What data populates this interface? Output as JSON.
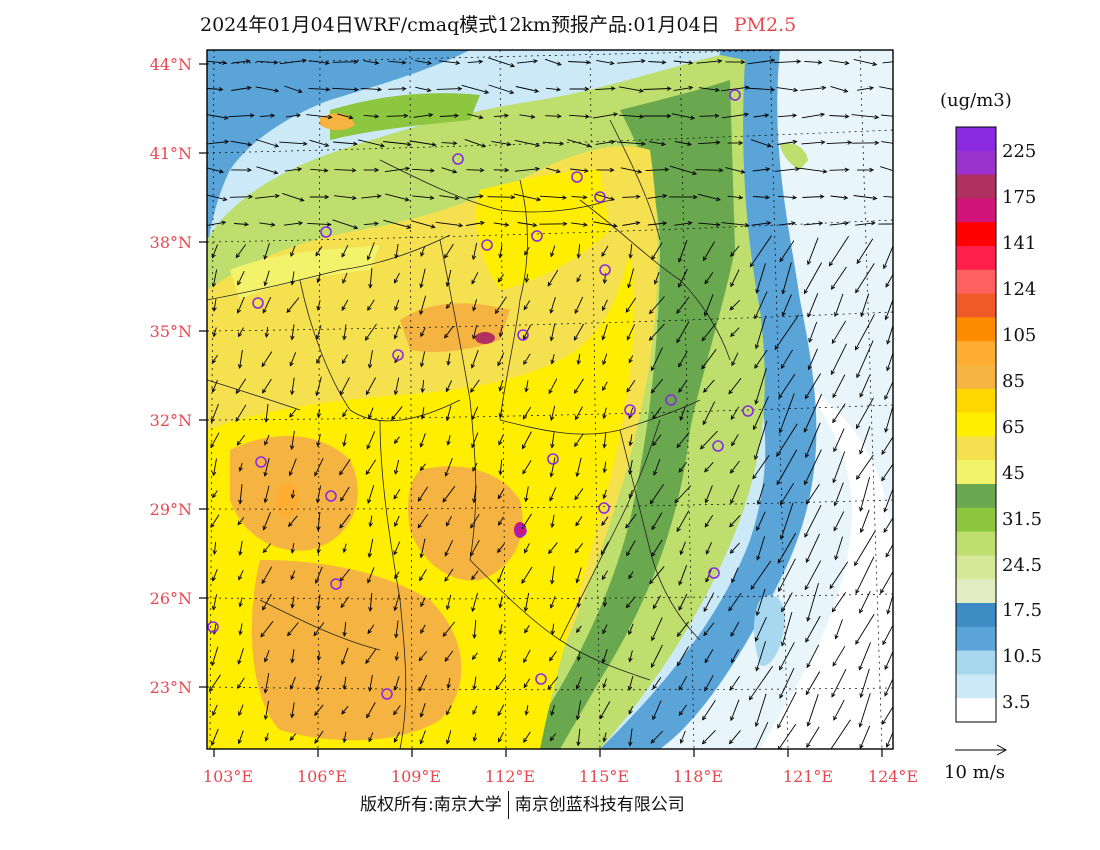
{
  "title": {
    "main": "2024年01月04日WRF/cmaq模式12km预报产品:01月04日",
    "pollutant": "PM2.5"
  },
  "axes": {
    "lat_labels": [
      "44°N",
      "41°N",
      "38°N",
      "35°N",
      "32°N",
      "29°N",
      "26°N",
      "23°N"
    ],
    "lon_labels": [
      "103°E",
      "106°E",
      "109°E",
      "112°E",
      "115°E",
      "118°E",
      "121°E",
      "124°E"
    ]
  },
  "legend": {
    "unit": "(ug/m3)",
    "colors": [
      "#8a2be2",
      "#9a32cd",
      "#b03060",
      "#d0147a",
      "#ff0000",
      "#ff1f4a",
      "#ff6060",
      "#f05a28",
      "#ff8c00",
      "#ffad33",
      "#f5b342",
      "#ffd700",
      "#ffee00",
      "#f5e050",
      "#f2f36b",
      "#6aa84f",
      "#8dc63f",
      "#bede6e",
      "#d6e89a",
      "#e2edc1",
      "#3d8cc4",
      "#5aa4d8",
      "#a8d8f0",
      "#cce9f7",
      "#ffffff"
    ],
    "labels": [
      "225",
      "175",
      "141",
      "124",
      "105",
      "85",
      "65",
      "45",
      "31.5",
      "24.5",
      "17.5",
      "10.5",
      "3.5"
    ]
  },
  "wind_reference": {
    "label": "10 m/s"
  },
  "colors": {
    "axis_label": "#e8474f",
    "station_marker": "#8a2be2"
  },
  "footer": {
    "left": "版权所有:南京大学",
    "right": "南京创蓝科技有限公司"
  }
}
